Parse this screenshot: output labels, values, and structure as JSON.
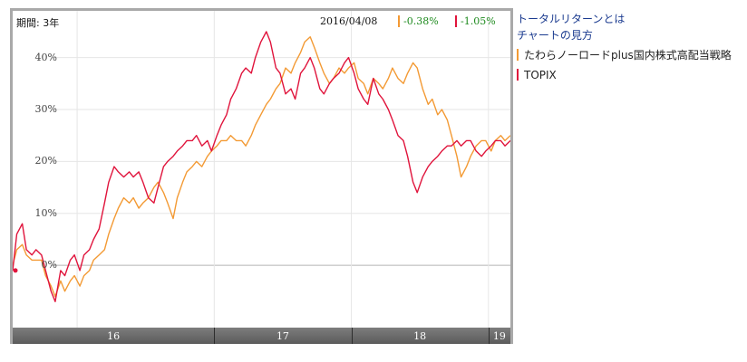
{
  "header": {
    "period_label": "期間: 3年",
    "date": "2016/04/08",
    "series_values": [
      "-0.38%",
      "-1.05%"
    ]
  },
  "links": {
    "total_return": "トータルリターンとは",
    "how_to_read": "チャートの見方"
  },
  "legend": [
    {
      "label": "たわらノーロードplus国内株式高配当戦略"
    },
    {
      "label": "TOPIX"
    }
  ],
  "colors": {
    "fund": "#f39a34",
    "topix": "#e0143c",
    "positive_text": "#1e8a1e",
    "grid": "#e6e6e6"
  },
  "chart_data": {
    "type": "line",
    "title": "",
    "xlabel": "",
    "ylabel": "",
    "ylim": [
      -12,
      49
    ],
    "yticks": [
      0,
      10,
      20,
      30,
      40
    ],
    "ytick_labels": [
      "0%",
      "10%",
      "20%",
      "30%",
      "40%"
    ],
    "x_year_labels": [
      "16",
      "17",
      "18",
      "19"
    ],
    "x_year_boundaries": [
      2016.0,
      2017.0,
      2018.0,
      2019.0
    ],
    "xlim": [
      2015.53,
      2019.16
    ],
    "grid": true,
    "series": [
      {
        "name": "たわらノーロードplus国内株式高配当戦略",
        "x": [
          2015.53,
          2015.56,
          2015.6,
          2015.63,
          2015.67,
          2015.7,
          2015.74,
          2015.77,
          2015.81,
          2015.84,
          2015.88,
          2015.91,
          2015.95,
          2015.98,
          2016.02,
          2016.05,
          2016.09,
          2016.12,
          2016.16,
          2016.2,
          2016.23,
          2016.27,
          2016.3,
          2016.34,
          2016.38,
          2016.41,
          2016.45,
          2016.48,
          2016.52,
          2016.56,
          2016.59,
          2016.63,
          2016.66,
          2016.7,
          2016.73,
          2016.77,
          2016.8,
          2016.84,
          2016.87,
          2016.91,
          2016.95,
          2016.98,
          2017.02,
          2017.05,
          2017.09,
          2017.12,
          2017.16,
          2017.2,
          2017.23,
          2017.27,
          2017.3,
          2017.34,
          2017.38,
          2017.41,
          2017.45,
          2017.48,
          2017.52,
          2017.56,
          2017.59,
          2017.63,
          2017.66,
          2017.7,
          2017.73,
          2017.77,
          2017.8,
          2017.84,
          2017.87,
          2017.91,
          2017.95,
          2017.98,
          2018.02,
          2018.05,
          2018.09,
          2018.12,
          2018.16,
          2018.2,
          2018.23,
          2018.27,
          2018.3,
          2018.34,
          2018.38,
          2018.41,
          2018.45,
          2018.48,
          2018.52,
          2018.56,
          2018.59,
          2018.63,
          2018.66,
          2018.7,
          2018.73,
          2018.77,
          2018.8,
          2018.84,
          2018.87,
          2018.91,
          2018.95,
          2018.98,
          2019.02,
          2019.05,
          2019.09,
          2019.12,
          2019.16
        ],
        "values": [
          0,
          3,
          4,
          2,
          1,
          1,
          1,
          -2,
          -4,
          -6,
          -3,
          -5,
          -3,
          -2,
          -4,
          -2,
          -1,
          1,
          2,
          3,
          6,
          9,
          11,
          13,
          12,
          13,
          11,
          12,
          13,
          15,
          16,
          14,
          12,
          9,
          13,
          16,
          18,
          19,
          20,
          19,
          21,
          22,
          23,
          24,
          24,
          25,
          24,
          24,
          23,
          25,
          27,
          29,
          31,
          32,
          34,
          35,
          38,
          37,
          39,
          41,
          43,
          44,
          42,
          39,
          37,
          35,
          36,
          38,
          37,
          38,
          39,
          36,
          35,
          33,
          36,
          35,
          34,
          36,
          38,
          36,
          35,
          37,
          39,
          38,
          34,
          31,
          32,
          29,
          30,
          28,
          25,
          21,
          17,
          19,
          21,
          23,
          24,
          24,
          22,
          24,
          25,
          24,
          25
        ]
      },
      {
        "name": "TOPIX",
        "x": [
          2015.53,
          2015.56,
          2015.6,
          2015.63,
          2015.67,
          2015.7,
          2015.74,
          2015.77,
          2015.81,
          2015.84,
          2015.88,
          2015.91,
          2015.95,
          2015.98,
          2016.02,
          2016.05,
          2016.09,
          2016.12,
          2016.16,
          2016.2,
          2016.23,
          2016.27,
          2016.3,
          2016.34,
          2016.38,
          2016.41,
          2016.45,
          2016.48,
          2016.52,
          2016.56,
          2016.59,
          2016.63,
          2016.66,
          2016.7,
          2016.73,
          2016.77,
          2016.8,
          2016.84,
          2016.87,
          2016.91,
          2016.95,
          2016.98,
          2017.02,
          2017.05,
          2017.09,
          2017.12,
          2017.16,
          2017.2,
          2017.23,
          2017.27,
          2017.3,
          2017.34,
          2017.38,
          2017.41,
          2017.45,
          2017.48,
          2017.52,
          2017.56,
          2017.59,
          2017.63,
          2017.66,
          2017.7,
          2017.73,
          2017.77,
          2017.8,
          2017.84,
          2017.87,
          2017.91,
          2017.95,
          2017.98,
          2018.02,
          2018.05,
          2018.09,
          2018.12,
          2018.16,
          2018.2,
          2018.23,
          2018.27,
          2018.3,
          2018.34,
          2018.38,
          2018.41,
          2018.45,
          2018.48,
          2018.52,
          2018.56,
          2018.59,
          2018.63,
          2018.66,
          2018.7,
          2018.73,
          2018.77,
          2018.8,
          2018.84,
          2018.87,
          2018.91,
          2018.95,
          2018.98,
          2019.02,
          2019.05,
          2019.09,
          2019.12,
          2019.16
        ],
        "values": [
          -1,
          6,
          8,
          3,
          2,
          3,
          2,
          -1,
          -5,
          -7,
          -1,
          -2,
          1,
          2,
          -1,
          2,
          3,
          5,
          7,
          12,
          16,
          19,
          18,
          17,
          18,
          17,
          18,
          16,
          13,
          12,
          15,
          19,
          20,
          21,
          22,
          23,
          24,
          24,
          25,
          23,
          24,
          22,
          25,
          27,
          29,
          32,
          34,
          37,
          38,
          37,
          40,
          43,
          45,
          43,
          38,
          37,
          33,
          34,
          32,
          37,
          38,
          40,
          38,
          34,
          33,
          35,
          36,
          37,
          39,
          40,
          37,
          34,
          32,
          31,
          36,
          33,
          32,
          30,
          28,
          25,
          24,
          21,
          16,
          14,
          17,
          19,
          20,
          21,
          22,
          23,
          23,
          24,
          23,
          24,
          24,
          22,
          21,
          22,
          23,
          24,
          24,
          23,
          24
        ]
      }
    ]
  }
}
